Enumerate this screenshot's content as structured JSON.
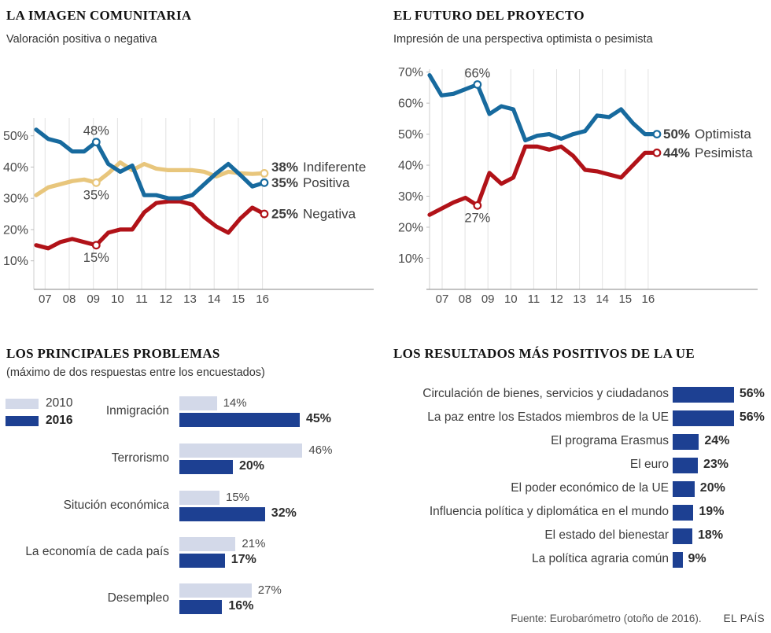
{
  "chart_data": [
    {
      "id": "imagen",
      "type": "line",
      "title": "LA IMAGEN COMUNITARIA",
      "subtitle": "Valoración positiva o negativa",
      "x_ticks": [
        "07",
        "08",
        "09",
        "10",
        "11",
        "12",
        "13",
        "14",
        "15",
        "16"
      ],
      "y_ticks": [
        50,
        40,
        30,
        20,
        10
      ],
      "ylim": [
        5,
        55
      ],
      "grid": "vertical-only",
      "series": [
        {
          "name": "Indiferente",
          "color": "#e8c67c",
          "end_label": "38%",
          "callout": {
            "index": 5,
            "label": "35%",
            "placement": "below"
          },
          "values": [
            31,
            33.5,
            34.5,
            35.5,
            36,
            35,
            38,
            41.5,
            39,
            41,
            39.5,
            39,
            39,
            39,
            38.5,
            37,
            38.5,
            38,
            37.8,
            38
          ]
        },
        {
          "name": "Negativa",
          "color": "#b11218",
          "end_label": "25%",
          "callout": {
            "index": 5,
            "label": "15%",
            "placement": "below"
          },
          "values": [
            15,
            14,
            16,
            17,
            16,
            15,
            19,
            20,
            20,
            25.5,
            28.5,
            29,
            29,
            28,
            24,
            21,
            19,
            23.5,
            27,
            25
          ]
        },
        {
          "name": "Positiva",
          "color": "#176a9e",
          "end_label": "35%",
          "callout": {
            "index": 5,
            "label": "48%",
            "placement": "above"
          },
          "values": [
            52,
            49,
            48,
            45,
            45,
            48,
            41,
            38.5,
            40.5,
            31,
            31,
            30,
            30,
            31,
            34.5,
            38,
            41,
            37.5,
            33.8,
            35
          ]
        }
      ]
    },
    {
      "id": "futuro",
      "type": "line",
      "title": "EL FUTURO DEL PROYECTO",
      "subtitle": "Impresión de una perspectiva optimista o pesimista",
      "x_ticks": [
        "07",
        "08",
        "09",
        "10",
        "11",
        "12",
        "13",
        "14",
        "15",
        "16"
      ],
      "y_ticks": [
        70,
        60,
        50,
        40,
        30,
        20,
        10
      ],
      "ylim": [
        5,
        72
      ],
      "grid": "vertical-only",
      "series": [
        {
          "name": "Pesimista",
          "color": "#b11218",
          "end_label": "44%",
          "callout": {
            "index": 4,
            "label": "27%",
            "placement": "below"
          },
          "values": [
            24,
            26,
            28,
            29.5,
            27,
            37.5,
            34,
            36,
            46,
            46,
            45,
            46,
            43,
            38.5,
            38,
            37,
            36,
            40,
            44,
            44
          ]
        },
        {
          "name": "Optimista",
          "color": "#176a9e",
          "end_label": "50%",
          "callout": {
            "index": 4,
            "label": "66%",
            "placement": "above"
          },
          "values": [
            69,
            62.5,
            63,
            64.5,
            66,
            56.5,
            59,
            58,
            48,
            49.5,
            50,
            48.5,
            50,
            51,
            56,
            55.5,
            58,
            53.5,
            50,
            50
          ]
        }
      ]
    },
    {
      "id": "problemas",
      "type": "bar",
      "title": "LOS PRINCIPALES PROBLEMAS",
      "subtitle": "(máximo de dos respuestas entre los encuestados)",
      "legend": [
        {
          "label": "2010",
          "color": "#d3d9e9"
        },
        {
          "label": "2016",
          "color": "#1d4092"
        }
      ],
      "categories": [
        "Inmigración",
        "Situción económica",
        "Terrorismo",
        "La economía de cada país",
        "Desempleo"
      ],
      "series": [
        {
          "name": "2010",
          "color": "#d3d9e9",
          "values": [
            14,
            15,
            46,
            21,
            27
          ]
        },
        {
          "name": "2016",
          "color": "#1d4092",
          "values": [
            45,
            32,
            20,
            17,
            16
          ]
        }
      ],
      "categories_order": [
        "Inmigración",
        "Terrorismo",
        "Situción económica",
        "La economía de cada país",
        "Desempleo"
      ]
    },
    {
      "id": "resultados",
      "type": "bar",
      "title": "LOS RESULTADOS MÁS POSITIVOS DE LA UE",
      "bar_color": "#1d4092",
      "categories": [
        "Circulación de bienes, servicios y ciudadanos",
        "La paz entre los Estados miembros de la UE",
        "El programa Erasmus",
        "El euro",
        "El poder económico de la UE",
        "Influencia política y diplomática en el mundo",
        "El estado del bienestar",
        "La política agraria común"
      ],
      "values": [
        56,
        56,
        24,
        23,
        20,
        19,
        18,
        9
      ]
    }
  ],
  "footer": {
    "source": "Fuente: Eurobarómetro (otoño de 2016).",
    "credit": "EL PAÍS"
  }
}
